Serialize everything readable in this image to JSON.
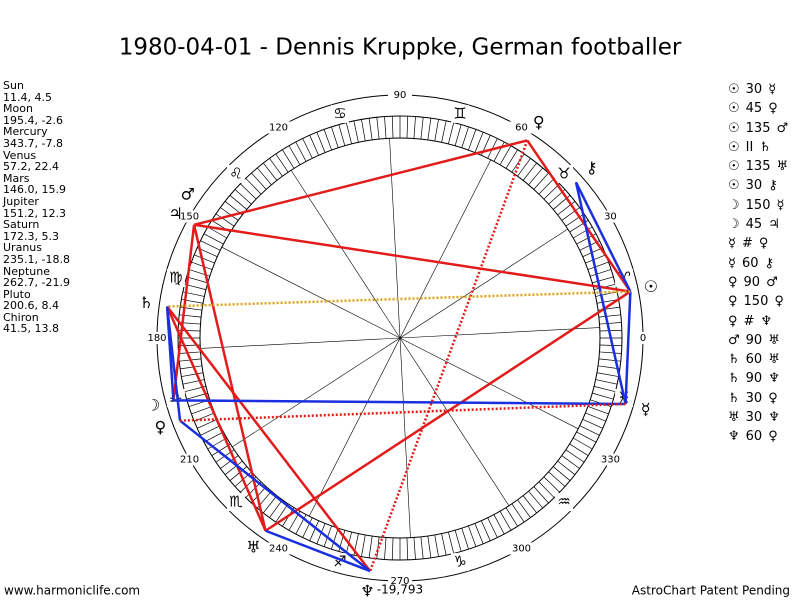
{
  "title": "1980-04-01 - Dennis Kruppke, German footballer",
  "planets": [
    {
      "name": "Sun",
      "position": "11.4, 4.5",
      "glyph": "☉"
    },
    {
      "name": "Moon",
      "position": "195.4, -2.6",
      "glyph": "☽"
    },
    {
      "name": "Mercury",
      "position": "343.7, -7.8",
      "glyph": "☿"
    },
    {
      "name": "Venus",
      "position": "57.2, 22.4",
      "glyph": "♀"
    },
    {
      "name": "Mars",
      "position": "146.0, 15.9",
      "glyph": "♂"
    },
    {
      "name": "Jupiter",
      "position": "151.2, 12.3",
      "glyph": "♃"
    },
    {
      "name": "Saturn",
      "position": "172.3, 5.3",
      "glyph": "♄"
    },
    {
      "name": "Uranus",
      "position": "235.1, -18.8",
      "glyph": "♅"
    },
    {
      "name": "Neptune",
      "position": "262.7, -21.9",
      "glyph": "♆"
    },
    {
      "name": "Pluto",
      "position": "200.6, 8.4",
      "glyph": "♀"
    },
    {
      "name": "Chiron",
      "position": "41.5, 13.8",
      "glyph": "⚷"
    }
  ],
  "zodiac": [
    "♈",
    "♉",
    "♊",
    "♋",
    "♌",
    "♍",
    "♎",
    "♏",
    "♐",
    "♑",
    "♒",
    "♓"
  ],
  "degree_labels": [
    "0",
    "30",
    "60",
    "90",
    "120",
    "150",
    "180",
    "210",
    "240",
    "270",
    "300",
    "330"
  ],
  "aspects": [
    [
      "☉",
      "30",
      "☿"
    ],
    [
      "☉",
      "45",
      "♀"
    ],
    [
      "☉",
      "135",
      "♂"
    ],
    [
      "☉",
      "II",
      "♄"
    ],
    [
      "☉",
      "135",
      "♅"
    ],
    [
      "☉",
      "30",
      "⚷"
    ],
    [
      "☽",
      "150",
      "☿"
    ],
    [
      "☽",
      "45",
      "♃"
    ],
    [
      "☿",
      "#",
      "♀"
    ],
    [
      "☿",
      "60",
      "⚷"
    ],
    [
      "♀",
      "90",
      "♂"
    ],
    [
      "♀",
      "150",
      "♀"
    ],
    [
      "♀",
      "#",
      "♆"
    ],
    [
      "♂",
      "90",
      "♅"
    ],
    [
      "♄",
      "60",
      "♅"
    ],
    [
      "♄",
      "90",
      "♆"
    ],
    [
      "♄",
      "30",
      "♀"
    ],
    [
      "♅",
      "30",
      "♆"
    ],
    [
      "♆",
      "60",
      "♀"
    ]
  ],
  "note": "-19,793",
  "footer": {
    "left": "www.harmoniclife.com",
    "right": "AstroChart Patent Pending"
  }
}
